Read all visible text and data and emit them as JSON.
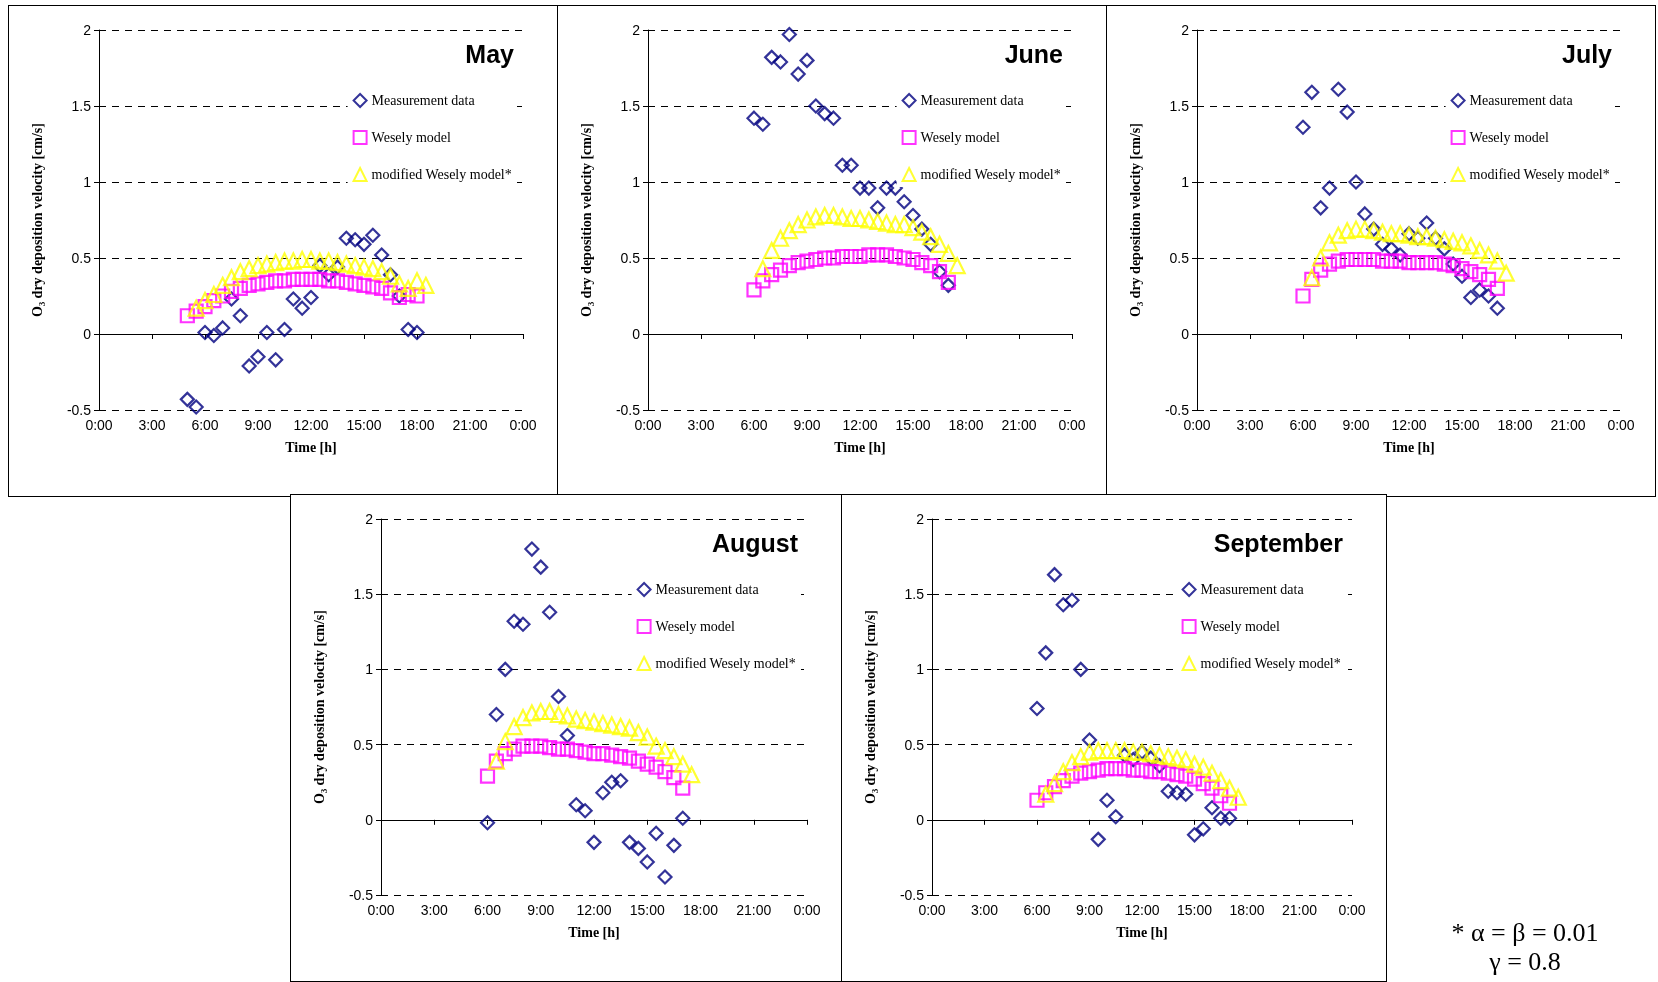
{
  "chart_data": [
    {
      "type": "scatter",
      "title": "May",
      "xlabel": "Time [h]",
      "ylabel": "O₃ dry deposition velocity [cm/s]",
      "xlim": [
        0,
        24
      ],
      "xticks": [
        {
          "value": 0,
          "label": "0:00"
        },
        {
          "value": 3,
          "label": "3:00"
        },
        {
          "value": 6,
          "label": "6:00"
        },
        {
          "value": 9,
          "label": "9:00"
        },
        {
          "value": 12,
          "label": "12:00"
        },
        {
          "value": 15,
          "label": "15:00"
        },
        {
          "value": 18,
          "label": "18:00"
        },
        {
          "value": 21,
          "label": "21:00"
        },
        {
          "value": 24,
          "label": "0:00"
        }
      ],
      "ylim": [
        -0.5,
        2
      ],
      "yticks": [
        -0.5,
        0,
        0.5,
        1,
        1.5,
        2
      ],
      "grid": "y",
      "legend": "top right",
      "series": [
        {
          "name": "Measurement data",
          "color": "#000080",
          "marker": "diamond",
          "x": [
            5,
            5.5,
            6,
            6.5,
            7,
            7.5,
            8,
            8.5,
            9,
            9.5,
            10,
            10.5,
            11,
            11.5,
            12,
            12.5,
            13,
            13.5,
            14,
            14.5,
            15,
            15.5,
            16,
            16.5,
            17,
            17.5,
            18
          ],
          "values": [
            -0.43,
            -0.48,
            0.01,
            -0.01,
            0.04,
            0.23,
            0.12,
            -0.21,
            -0.15,
            0.01,
            -0.17,
            0.03,
            0.23,
            0.17,
            0.24,
            0.45,
            0.39,
            0.44,
            0.63,
            0.62,
            0.59,
            0.65,
            0.52,
            0.39,
            0.25,
            0.03,
            0.01
          ]
        },
        {
          "name": "Wesely model",
          "color": "#ff00ff",
          "marker": "square",
          "x": [
            5,
            5.5,
            6,
            6.5,
            7,
            7.5,
            8,
            8.5,
            9,
            9.5,
            10,
            10.5,
            11,
            11.5,
            12,
            12.5,
            13,
            13.5,
            14,
            14.5,
            15,
            15.5,
            16,
            16.5,
            17,
            17.5,
            18
          ],
          "values": [
            0.12,
            0.15,
            0.18,
            0.22,
            0.25,
            0.28,
            0.3,
            0.32,
            0.33,
            0.34,
            0.35,
            0.35,
            0.36,
            0.36,
            0.36,
            0.36,
            0.35,
            0.35,
            0.34,
            0.33,
            0.32,
            0.31,
            0.3,
            0.27,
            0.24,
            0.26,
            0.25
          ]
        },
        {
          "name": "modified Wesely model*",
          "color": "#ffff00",
          "marker": "triangle",
          "x": [
            5.5,
            6,
            6.5,
            7,
            7.5,
            8,
            8.5,
            9,
            9.5,
            10,
            10.5,
            11,
            11.5,
            12,
            12.5,
            13,
            13.5,
            14,
            14.5,
            15,
            15.5,
            16,
            16.5,
            17,
            17.5,
            18,
            18.5
          ],
          "values": [
            0.17,
            0.22,
            0.26,
            0.32,
            0.37,
            0.41,
            0.43,
            0.45,
            0.46,
            0.47,
            0.48,
            0.48,
            0.49,
            0.49,
            0.48,
            0.48,
            0.47,
            0.46,
            0.45,
            0.44,
            0.43,
            0.41,
            0.38,
            0.33,
            0.3,
            0.35,
            0.32
          ]
        }
      ]
    },
    {
      "type": "scatter",
      "title": "June",
      "xlabel": "Time [h]",
      "ylabel": "O₃ dry deposition velocity [cm/s]",
      "xlim": [
        0,
        24
      ],
      "xticks": [
        {
          "value": 0,
          "label": "0:00"
        },
        {
          "value": 3,
          "label": "3:00"
        },
        {
          "value": 6,
          "label": "6:00"
        },
        {
          "value": 9,
          "label": "9:00"
        },
        {
          "value": 12,
          "label": "12:00"
        },
        {
          "value": 15,
          "label": "15:00"
        },
        {
          "value": 18,
          "label": "18:00"
        },
        {
          "value": 21,
          "label": "21:00"
        },
        {
          "value": 24,
          "label": "0:00"
        }
      ],
      "ylim": [
        -0.5,
        2
      ],
      "yticks": [
        -0.5,
        0,
        0.5,
        1,
        1.5,
        2
      ],
      "grid": "y",
      "legend": "top right",
      "series": [
        {
          "name": "Measurement data",
          "color": "#000080",
          "marker": "diamond",
          "x": [
            6,
            6.5,
            7,
            7.5,
            8,
            8.5,
            9,
            9.5,
            10,
            10.5,
            11,
            11.5,
            12,
            12.5,
            13,
            13.5,
            14,
            14.5,
            15,
            15.5,
            16,
            16.5,
            17
          ],
          "values": [
            1.42,
            1.38,
            1.82,
            1.79,
            1.97,
            1.71,
            1.8,
            1.5,
            1.45,
            1.42,
            1.11,
            1.11,
            0.96,
            0.96,
            0.83,
            0.96,
            0.96,
            0.87,
            0.78,
            0.69,
            0.59,
            0.41,
            0.32
          ]
        },
        {
          "name": "Wesely model",
          "color": "#ff00ff",
          "marker": "square",
          "x": [
            6,
            6.5,
            7,
            7.5,
            8,
            8.5,
            9,
            9.5,
            10,
            10.5,
            11,
            11.5,
            12,
            12.5,
            13,
            13.5,
            14,
            14.5,
            15,
            15.5,
            16,
            16.5,
            17
          ],
          "values": [
            0.29,
            0.35,
            0.39,
            0.42,
            0.45,
            0.47,
            0.48,
            0.49,
            0.5,
            0.5,
            0.51,
            0.51,
            0.51,
            0.52,
            0.52,
            0.52,
            0.51,
            0.5,
            0.49,
            0.47,
            0.45,
            0.41,
            0.34
          ]
        },
        {
          "name": "modified Wesely model*",
          "color": "#ffff00",
          "marker": "triangle",
          "x": [
            6.5,
            7,
            7.5,
            8,
            8.5,
            9,
            9.5,
            10,
            10.5,
            11,
            11.5,
            12,
            12.5,
            13,
            13.5,
            14,
            14.5,
            15,
            15.5,
            16,
            16.5,
            17,
            17.5
          ],
          "values": [
            0.43,
            0.55,
            0.63,
            0.68,
            0.72,
            0.75,
            0.77,
            0.78,
            0.78,
            0.77,
            0.76,
            0.76,
            0.75,
            0.74,
            0.73,
            0.72,
            0.72,
            0.7,
            0.67,
            0.64,
            0.59,
            0.53,
            0.45
          ]
        }
      ]
    },
    {
      "type": "scatter",
      "title": "July",
      "xlabel": "Time [h]",
      "ylabel": "O₃ dry deposition velocity [cm/s]",
      "xlim": [
        0,
        24
      ],
      "xticks": [
        {
          "value": 0,
          "label": "0:00"
        },
        {
          "value": 3,
          "label": "3:00"
        },
        {
          "value": 6,
          "label": "6:00"
        },
        {
          "value": 9,
          "label": "9:00"
        },
        {
          "value": 12,
          "label": "12:00"
        },
        {
          "value": 15,
          "label": "15:00"
        },
        {
          "value": 18,
          "label": "18:00"
        },
        {
          "value": 21,
          "label": "21:00"
        },
        {
          "value": 24,
          "label": "0:00"
        }
      ],
      "ylim": [
        -0.5,
        2
      ],
      "yticks": [
        -0.5,
        0,
        0.5,
        1,
        1.5,
        2
      ],
      "grid": "y",
      "legend": "top right",
      "series": [
        {
          "name": "Measurement data",
          "color": "#000080",
          "marker": "diamond",
          "x": [
            6,
            6.5,
            7,
            7.5,
            8,
            8.5,
            9,
            9.5,
            10,
            10.5,
            11,
            11.5,
            12,
            12.5,
            13,
            13.5,
            14,
            14.5,
            15,
            15.5,
            16,
            16.5,
            17
          ],
          "values": [
            1.36,
            1.59,
            0.83,
            0.96,
            1.61,
            1.46,
            1.0,
            0.79,
            0.69,
            0.59,
            0.56,
            0.52,
            0.66,
            0.63,
            0.73,
            0.63,
            0.56,
            0.46,
            0.38,
            0.24,
            0.29,
            0.25,
            0.17
          ]
        },
        {
          "name": "Wesely model",
          "color": "#ff00ff",
          "marker": "square",
          "x": [
            6,
            6.5,
            7,
            7.5,
            8,
            8.5,
            9,
            9.5,
            10,
            10.5,
            11,
            11.5,
            12,
            12.5,
            13,
            13.5,
            14,
            14.5,
            15,
            15.5,
            16,
            16.5,
            17
          ],
          "values": [
            0.25,
            0.36,
            0.42,
            0.46,
            0.48,
            0.49,
            0.49,
            0.49,
            0.49,
            0.48,
            0.48,
            0.48,
            0.47,
            0.47,
            0.47,
            0.47,
            0.46,
            0.45,
            0.43,
            0.41,
            0.39,
            0.36,
            0.3
          ]
        },
        {
          "name": "modified Wesely model*",
          "color": "#ffff00",
          "marker": "triangle",
          "x": [
            6.5,
            7,
            7.5,
            8,
            8.5,
            9,
            9.5,
            10,
            10.5,
            11,
            11.5,
            12,
            12.5,
            13,
            13.5,
            14,
            14.5,
            15,
            15.5,
            16,
            16.5,
            17,
            17.5
          ],
          "values": [
            0.37,
            0.5,
            0.6,
            0.65,
            0.68,
            0.69,
            0.69,
            0.68,
            0.67,
            0.66,
            0.66,
            0.65,
            0.64,
            0.64,
            0.63,
            0.62,
            0.61,
            0.6,
            0.58,
            0.55,
            0.52,
            0.48,
            0.4
          ]
        }
      ]
    },
    {
      "type": "scatter",
      "title": "August",
      "xlabel": "Time [h]",
      "ylabel": "O₃ dry deposition velocity [cm/s]",
      "xlim": [
        0,
        24
      ],
      "xticks": [
        {
          "value": 0,
          "label": "0:00"
        },
        {
          "value": 3,
          "label": "3:00"
        },
        {
          "value": 6,
          "label": "6:00"
        },
        {
          "value": 9,
          "label": "9:00"
        },
        {
          "value": 12,
          "label": "12:00"
        },
        {
          "value": 15,
          "label": "15:00"
        },
        {
          "value": 18,
          "label": "18:00"
        },
        {
          "value": 21,
          "label": "21:00"
        },
        {
          "value": 24,
          "label": "0:00"
        }
      ],
      "ylim": [
        -0.5,
        2
      ],
      "yticks": [
        -0.5,
        0,
        0.5,
        1,
        1.5,
        2
      ],
      "grid": "y",
      "legend": "top right",
      "series": [
        {
          "name": "Measurement data",
          "color": "#000080",
          "marker": "diamond",
          "x": [
            6,
            6.5,
            7,
            7.5,
            8,
            8.5,
            9,
            9.5,
            10,
            10.5,
            11,
            11.5,
            12,
            12.5,
            13,
            13.5,
            14,
            14.5,
            15,
            15.5,
            16,
            16.5,
            17
          ],
          "values": [
            -0.02,
            0.7,
            1.0,
            1.32,
            1.3,
            1.8,
            1.68,
            1.38,
            0.82,
            0.56,
            0.1,
            0.06,
            -0.15,
            0.18,
            0.25,
            0.26,
            -0.15,
            -0.19,
            -0.28,
            -0.09,
            -0.38,
            -0.17,
            0.01
          ]
        },
        {
          "name": "Wesely model",
          "color": "#ff00ff",
          "marker": "square",
          "x": [
            6,
            6.5,
            7,
            7.5,
            8,
            8.5,
            9,
            9.5,
            10,
            10.5,
            11,
            11.5,
            12,
            12.5,
            13,
            13.5,
            14,
            14.5,
            15,
            15.5,
            16,
            16.5,
            17
          ],
          "values": [
            0.29,
            0.39,
            0.44,
            0.47,
            0.49,
            0.49,
            0.49,
            0.48,
            0.47,
            0.47,
            0.46,
            0.45,
            0.44,
            0.44,
            0.43,
            0.42,
            0.41,
            0.39,
            0.37,
            0.35,
            0.32,
            0.28,
            0.21
          ]
        },
        {
          "name": "modified Wesely model*",
          "color": "#ffff00",
          "marker": "triangle",
          "x": [
            6.5,
            7,
            7.5,
            8,
            8.5,
            9,
            9.5,
            10,
            10.5,
            11,
            11.5,
            12,
            12.5,
            13,
            13.5,
            14,
            14.5,
            15,
            15.5,
            16,
            16.5,
            17,
            17.5
          ],
          "values": [
            0.39,
            0.52,
            0.62,
            0.68,
            0.71,
            0.72,
            0.72,
            0.7,
            0.69,
            0.67,
            0.66,
            0.65,
            0.64,
            0.63,
            0.62,
            0.61,
            0.58,
            0.55,
            0.49,
            0.46,
            0.42,
            0.37,
            0.3
          ]
        }
      ]
    },
    {
      "type": "scatter",
      "title": "September",
      "xlabel": "Time [h]",
      "ylabel": "O₃ dry deposition velocity [cm/s]",
      "xlim": [
        0,
        24
      ],
      "xticks": [
        {
          "value": 0,
          "label": "0:00"
        },
        {
          "value": 3,
          "label": "3:00"
        },
        {
          "value": 6,
          "label": "6:00"
        },
        {
          "value": 9,
          "label": "9:00"
        },
        {
          "value": 12,
          "label": "12:00"
        },
        {
          "value": 15,
          "label": "15:00"
        },
        {
          "value": 18,
          "label": "18:00"
        },
        {
          "value": 21,
          "label": "21:00"
        },
        {
          "value": 24,
          "label": "0:00"
        }
      ],
      "ylim": [
        -0.5,
        2
      ],
      "yticks": [
        -0.5,
        0,
        0.5,
        1,
        1.5,
        2
      ],
      "grid": "y",
      "legend": "top right",
      "annotations": [
        "* α = β = 0.01",
        "γ = 0.8"
      ],
      "series": [
        {
          "name": "Measurement data",
          "color": "#000080",
          "marker": "diamond",
          "x": [
            6,
            6.5,
            7,
            7.5,
            8,
            8.5,
            9,
            9.5,
            10,
            10.5,
            11,
            11.5,
            12,
            12.5,
            13,
            13.5,
            14,
            14.5,
            15,
            15.5,
            16,
            16.5,
            17
          ],
          "values": [
            0.74,
            1.11,
            1.63,
            1.43,
            1.46,
            1.0,
            0.53,
            -0.13,
            0.13,
            0.02,
            0.43,
            0.4,
            0.45,
            0.41,
            0.36,
            0.19,
            0.18,
            0.17,
            -0.1,
            -0.06,
            0.08,
            0.01,
            0.01
          ]
        },
        {
          "name": "Wesely model",
          "color": "#ff00ff",
          "marker": "square",
          "x": [
            6,
            6.5,
            7,
            7.5,
            8,
            8.5,
            9,
            9.5,
            10,
            10.5,
            11,
            11.5,
            12,
            12.5,
            13,
            13.5,
            14,
            14.5,
            15,
            15.5,
            16,
            16.5,
            17
          ],
          "values": [
            0.13,
            0.18,
            0.22,
            0.26,
            0.29,
            0.31,
            0.32,
            0.33,
            0.34,
            0.34,
            0.34,
            0.33,
            0.33,
            0.32,
            0.32,
            0.31,
            0.3,
            0.29,
            0.27,
            0.24,
            0.21,
            0.16,
            0.11
          ]
        },
        {
          "name": "modified Wesely model*",
          "color": "#ffff00",
          "marker": "triangle",
          "x": [
            6.5,
            7,
            7.5,
            8,
            8.5,
            9,
            9.5,
            10,
            10.5,
            11,
            11.5,
            12,
            12.5,
            13,
            13.5,
            14,
            14.5,
            15,
            15.5,
            16,
            16.5,
            17,
            17.5
          ],
          "values": [
            0.17,
            0.24,
            0.32,
            0.38,
            0.42,
            0.45,
            0.46,
            0.46,
            0.46,
            0.46,
            0.45,
            0.45,
            0.44,
            0.43,
            0.42,
            0.41,
            0.4,
            0.37,
            0.35,
            0.31,
            0.26,
            0.21,
            0.15
          ]
        }
      ]
    }
  ]
}
